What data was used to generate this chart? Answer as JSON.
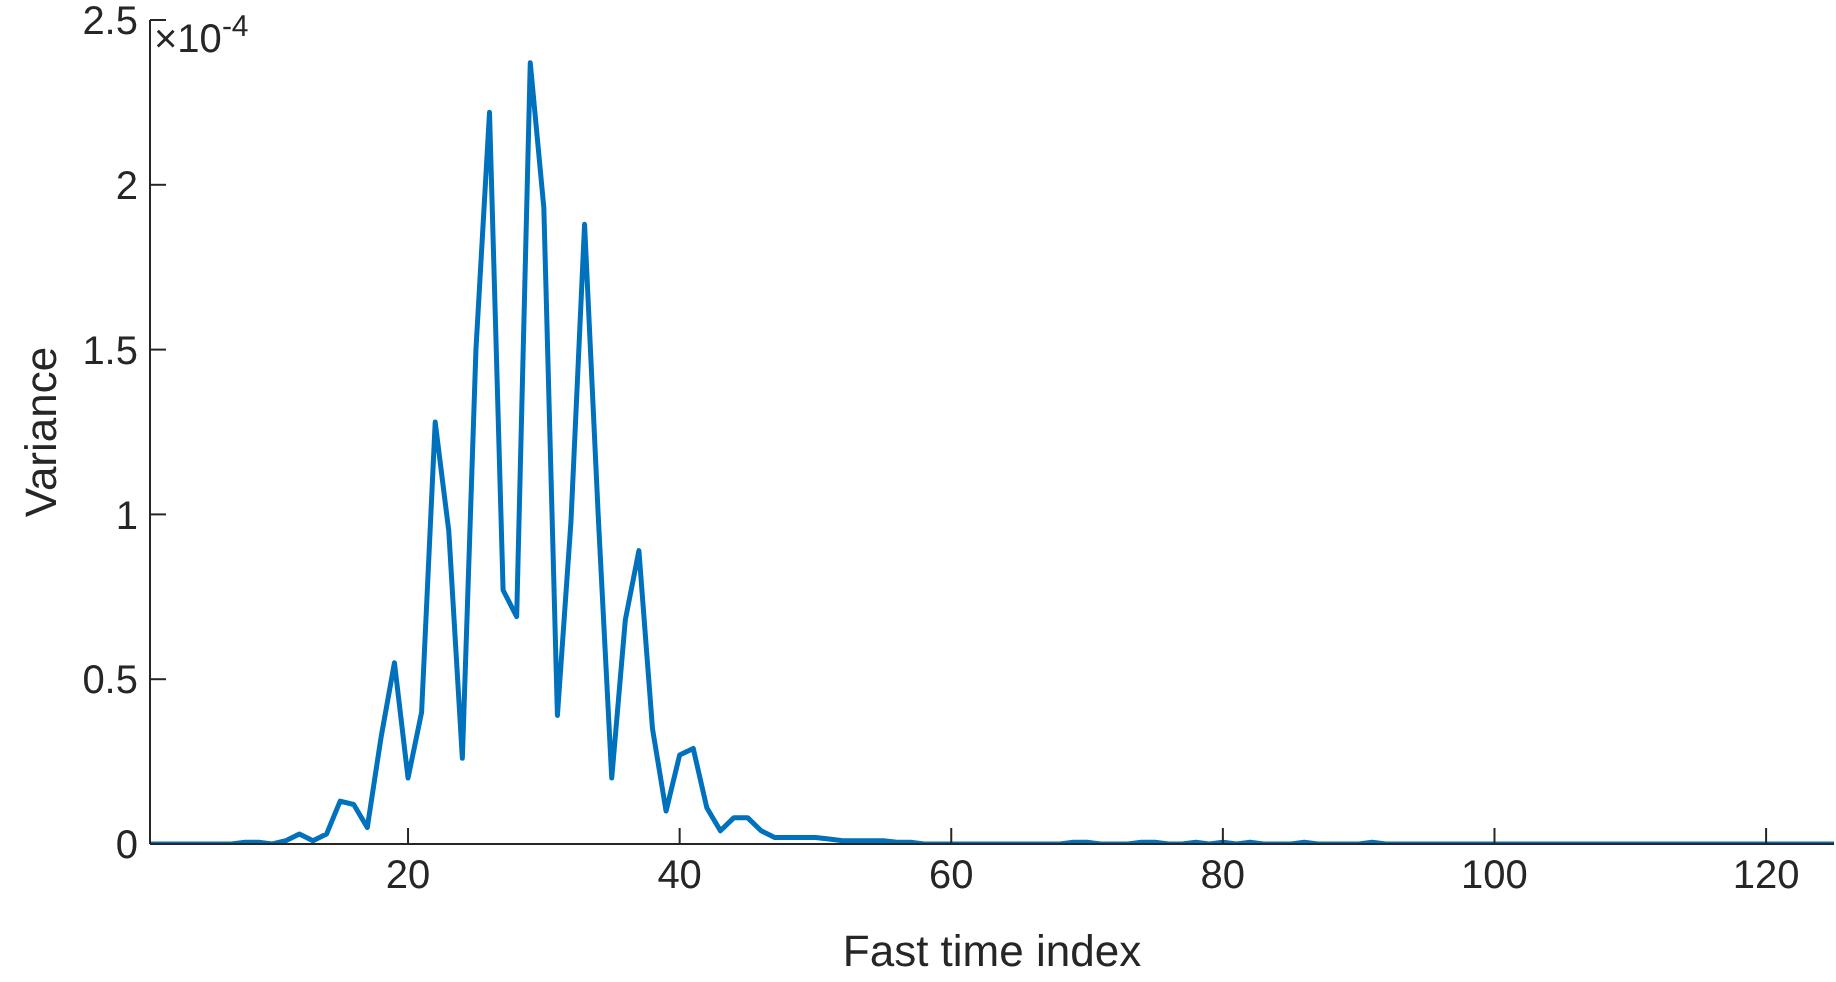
{
  "chart_data": {
    "type": "line",
    "xlabel": "Fast time index",
    "ylabel": "Variance",
    "annotations": [
      "×10$^{-4}$"
    ],
    "x": [
      1,
      2,
      3,
      4,
      5,
      6,
      7,
      8,
      9,
      10,
      11,
      12,
      13,
      14,
      15,
      16,
      17,
      18,
      19,
      20,
      21,
      22,
      23,
      24,
      25,
      26,
      27,
      28,
      29,
      30,
      31,
      32,
      33,
      34,
      35,
      36,
      37,
      38,
      39,
      40,
      41,
      42,
      43,
      44,
      45,
      46,
      47,
      48,
      49,
      50,
      51,
      52,
      53,
      54,
      55,
      56,
      57,
      58,
      59,
      60,
      61,
      62,
      63,
      64,
      65,
      66,
      67,
      68,
      69,
      70,
      71,
      72,
      73,
      74,
      75,
      76,
      77,
      78,
      79,
      80,
      81,
      82,
      83,
      84,
      85,
      86,
      87,
      88,
      89,
      90,
      91,
      92,
      93,
      94,
      95,
      96,
      97,
      98,
      99,
      100,
      101,
      102,
      103,
      104,
      105,
      106,
      107,
      108,
      109,
      110,
      111,
      112,
      113,
      114,
      115,
      116,
      117,
      118,
      119,
      120,
      121,
      122,
      123,
      124,
      125
    ],
    "series": [
      {
        "color": "#0072bd",
        "values": [
          0,
          0,
          0,
          0,
          0,
          0,
          0,
          0.005,
          0.005,
          0,
          0.01,
          0.03,
          0.01,
          0.03,
          0.13,
          0.12,
          0.05,
          0.32,
          0.55,
          0.2,
          0.4,
          1.28,
          0.95,
          0.26,
          1.5,
          2.22,
          0.77,
          0.69,
          2.37,
          1.93,
          0.39,
          0.98,
          1.88,
          1.0,
          0.2,
          0.68,
          0.89,
          0.35,
          0.1,
          0.27,
          0.29,
          0.11,
          0.04,
          0.08,
          0.08,
          0.04,
          0.02,
          0.02,
          0.02,
          0.02,
          0.015,
          0.01,
          0.01,
          0.01,
          0.01,
          0.005,
          0.005,
          0,
          0,
          0,
          0,
          0,
          0,
          0,
          0,
          0,
          0,
          0,
          0.005,
          0.005,
          0,
          0,
          0,
          0.005,
          0.005,
          0,
          0,
          0.005,
          0,
          0.005,
          0,
          0.005,
          0,
          0,
          0,
          0.005,
          0,
          0,
          0,
          0,
          0.005,
          0,
          0,
          0,
          0,
          0,
          0,
          0,
          0,
          0,
          0,
          0,
          0,
          0,
          0,
          0,
          0,
          0,
          0,
          0,
          0,
          0,
          0,
          0,
          0,
          0,
          0,
          0,
          0,
          0,
          0,
          0,
          0,
          0,
          0
        ]
      }
    ],
    "xlim": [
      1,
      125
    ],
    "xticks": [
      20,
      40,
      60,
      80,
      100,
      120
    ],
    "ylim": [
      0,
      2.5
    ],
    "yticks": [
      0,
      0.5,
      1,
      1.5,
      2,
      2.5
    ],
    "grid": false,
    "legend": false,
    "marker": "none",
    "line_style": "solid"
  }
}
